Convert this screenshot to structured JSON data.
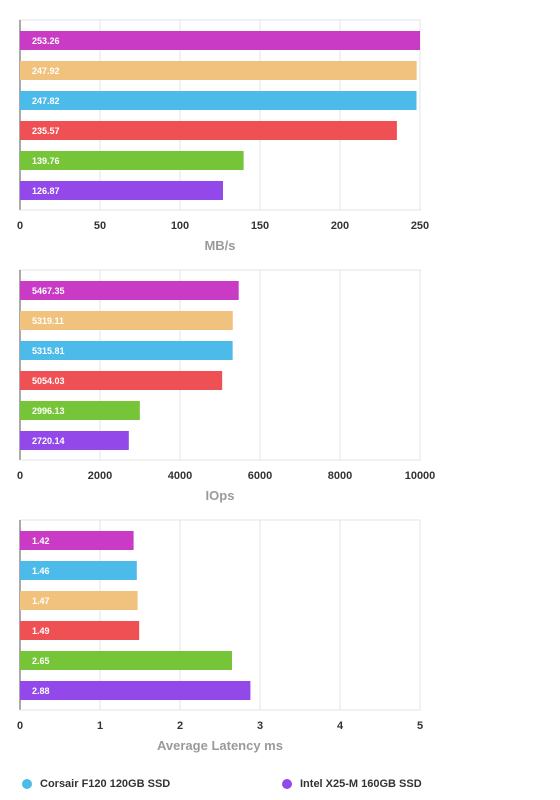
{
  "colors": {
    "magenta": "#c93bc4",
    "tan": "#f0c27d",
    "blue": "#4cbbea",
    "red": "#ef5054",
    "green": "#76c538",
    "purple": "#9348ea",
    "grid": "#e3e3e3",
    "axis": "#555555",
    "tick_text": "#333333",
    "xlabel_text": "#9a9a9a"
  },
  "chart_data": [
    {
      "type": "bar",
      "orientation": "horizontal",
      "values": [
        253.26,
        247.92,
        247.82,
        235.57,
        139.76,
        126.87
      ],
      "bar_colors": [
        "magenta",
        "tan",
        "blue",
        "red",
        "green",
        "purple"
      ],
      "data_labels": [
        "253.26",
        "247.92",
        "247.82",
        "235.57",
        "139.76",
        "126.87"
      ],
      "xlabel": "MB/s",
      "xlim": [
        0,
        250
      ],
      "xticks": [
        "0",
        "50",
        "100",
        "150",
        "200",
        "250"
      ],
      "grid": true
    },
    {
      "type": "bar",
      "orientation": "horizontal",
      "values": [
        5467.35,
        5319.11,
        5315.81,
        5054.03,
        2996.13,
        2720.14
      ],
      "bar_colors": [
        "magenta",
        "tan",
        "blue",
        "red",
        "green",
        "purple"
      ],
      "data_labels": [
        "5467.35",
        "5319.11",
        "5315.81",
        "5054.03",
        "2996.13",
        "2720.14"
      ],
      "xlabel": "IOps",
      "xlim": [
        0,
        10000
      ],
      "xticks": [
        "0",
        "2000",
        "4000",
        "6000",
        "8000",
        "10000"
      ],
      "grid": true
    },
    {
      "type": "bar",
      "orientation": "horizontal",
      "values": [
        1.42,
        1.46,
        1.47,
        1.49,
        2.65,
        2.88
      ],
      "bar_colors": [
        "magenta",
        "blue",
        "tan",
        "red",
        "green",
        "purple"
      ],
      "data_labels": [
        "1.42",
        "1.46",
        "1.47",
        "1.49",
        "2.65",
        "2.88"
      ],
      "xlabel": "Average Latency ms",
      "xlim": [
        0,
        5
      ],
      "xticks": [
        "0",
        "1",
        "2",
        "3",
        "4",
        "5"
      ],
      "grid": true
    }
  ],
  "legend": {
    "items": [
      {
        "label": "Corsair F120 120GB SSD",
        "color": "#4cbbea"
      },
      {
        "label": "Intel X25-M 160GB SSD",
        "color": "#9348ea"
      }
    ]
  }
}
